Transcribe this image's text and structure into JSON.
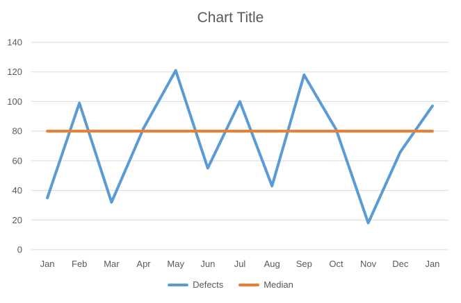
{
  "chart_data": {
    "type": "line",
    "title": "Chart Title",
    "xlabel": "",
    "ylabel": "",
    "categories": [
      "Jan",
      "Feb",
      "Mar",
      "Apr",
      "May",
      "Jun",
      "Jul",
      "Aug",
      "Sep",
      "Oct",
      "Nov",
      "Dec",
      "Jan"
    ],
    "ylim": [
      0,
      140
    ],
    "yticks": [
      0,
      20,
      40,
      60,
      80,
      100,
      120,
      140
    ],
    "grid": true,
    "legend": "bottom",
    "series": [
      {
        "name": "Defects",
        "color": "#5B9BD5",
        "values": [
          35,
          99,
          32,
          82,
          121,
          55,
          100,
          43,
          118,
          81,
          18,
          66,
          97
        ]
      },
      {
        "name": "Median",
        "color": "#ED7D31",
        "values": [
          80,
          80,
          80,
          80,
          80,
          80,
          80,
          80,
          80,
          80,
          80,
          80,
          80
        ]
      }
    ]
  }
}
